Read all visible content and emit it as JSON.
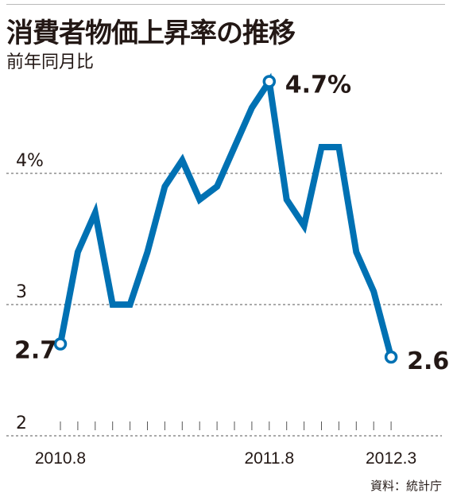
{
  "header": {
    "title": "消費者物価上昇率の推移",
    "subtitle": "前年同月比"
  },
  "source": "資料：統計庁",
  "colors": {
    "line": "#0071b3",
    "text": "#231815",
    "grid": "#555555"
  },
  "chart_data": {
    "type": "line",
    "title": "消費者物価上昇率の推移",
    "subtitle": "前年同月比",
    "x": [
      "2010.8",
      "2010.9",
      "2010.10",
      "2010.11",
      "2010.12",
      "2011.1",
      "2011.2",
      "2011.3",
      "2011.4",
      "2011.5",
      "2011.6",
      "2011.7",
      "2011.8",
      "2011.9",
      "2011.10",
      "2011.11",
      "2011.12",
      "2012.1",
      "2012.2",
      "2012.3"
    ],
    "series": [
      {
        "values": [
          2.7,
          3.4,
          3.7,
          3.0,
          3.0,
          3.4,
          3.9,
          4.1,
          3.8,
          3.9,
          4.2,
          4.5,
          4.7,
          3.8,
          3.6,
          4.2,
          4.2,
          3.4,
          3.1,
          2.6
        ]
      }
    ],
    "ylim": [
      2,
      4.9
    ],
    "y_ticks": [
      {
        "value": 2,
        "label": "2"
      },
      {
        "value": 3,
        "label": "3"
      },
      {
        "value": 4,
        "label": "4%"
      }
    ],
    "x_tick_labels": [
      {
        "index": 0,
        "label": "2010.8"
      },
      {
        "index": 12,
        "label": "2011.8"
      },
      {
        "index": 19,
        "label": "2012.3"
      }
    ],
    "point_labels": [
      {
        "index": 0,
        "label": "2.7"
      },
      {
        "index": 12,
        "label": "4.7%"
      },
      {
        "index": 19,
        "label": "2.6"
      }
    ],
    "grid": "dashed horizontal"
  }
}
